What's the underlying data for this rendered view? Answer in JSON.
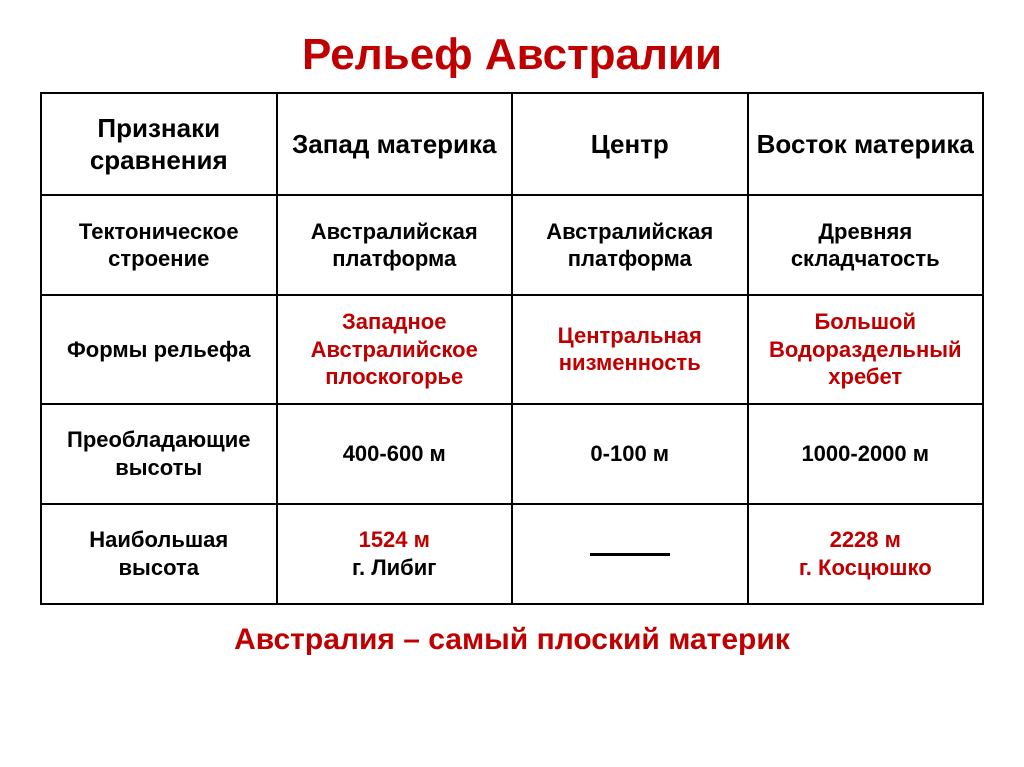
{
  "colors": {
    "red": "#c00000",
    "black": "#000000",
    "bg": "#ffffff",
    "border": "#000000"
  },
  "title": "Рельеф Австралии",
  "subtitle": "Австралия – самый плоский материк",
  "columns": [
    "Признаки сравнения",
    "Запад материка",
    "Центр",
    "Восток материка"
  ],
  "rows": [
    {
      "label": "Тектоническое строение",
      "cells": [
        {
          "text": "Австралийская платформа",
          "color": "black"
        },
        {
          "text": "Австралийская платформа",
          "color": "black"
        },
        {
          "text": "Древняя складчатость",
          "color": "black"
        }
      ]
    },
    {
      "label": "Формы рельефа",
      "cells": [
        {
          "text": "Западное Австралийское плоскогорье",
          "color": "red"
        },
        {
          "text": "Центральная низменность",
          "color": "red"
        },
        {
          "text": "Большой Водораздельный хребет",
          "color": "red"
        }
      ]
    },
    {
      "label": "Преобладающие высоты",
      "cells": [
        {
          "text": "400-600 м",
          "color": "black"
        },
        {
          "text": "0-100 м",
          "color": "black"
        },
        {
          "text": "1000-2000 м",
          "color": "black"
        }
      ]
    },
    {
      "label": "Наибольшая высота",
      "cells": [
        {
          "line1": "1524 м",
          "line2": "г. Либиг",
          "color1": "red",
          "color2": "black",
          "mixed": true
        },
        {
          "dash": true
        },
        {
          "line1": "2228 м",
          "line2": "г. Косцюшко",
          "color1": "red",
          "color2": "red",
          "mixed": true
        }
      ]
    }
  ]
}
